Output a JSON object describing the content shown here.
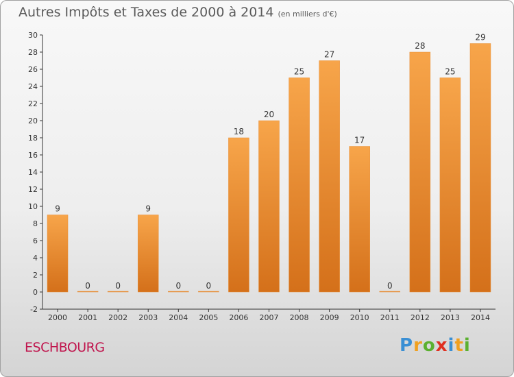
{
  "title": "Autres Impôts et Taxes de 2000 à 2014",
  "subtitle": "(en milliers d'€)",
  "city": "ESCHBOURG",
  "logo": {
    "letters": [
      "P",
      "r",
      "o",
      "x",
      "i",
      "t",
      "i"
    ],
    "colors": [
      "#3a8fd4",
      "#f0a020",
      "#5bb030",
      "#e03020",
      "#3a8fd4",
      "#f0a020",
      "#5bb030"
    ]
  },
  "colors": {
    "bar_top": "#f7a54a",
    "bar_bottom": "#d4701a",
    "axis": "#333333",
    "grid": "#cfcfcf",
    "label": "#333333",
    "title": "#5a5a5a",
    "city": "#c0164e"
  },
  "chart_data": {
    "type": "bar",
    "categories": [
      "2000",
      "2001",
      "2002",
      "2003",
      "2004",
      "2005",
      "2006",
      "2007",
      "2008",
      "2009",
      "2010",
      "2011",
      "2012",
      "2013",
      "2014"
    ],
    "values": [
      9,
      0,
      0,
      9,
      0,
      0,
      18,
      20,
      25,
      27,
      17,
      0,
      28,
      25,
      29
    ],
    "ylim": [
      -2,
      30
    ],
    "yticks": [
      -2,
      0,
      2,
      4,
      6,
      8,
      10,
      12,
      14,
      16,
      18,
      20,
      22,
      24,
      26,
      28,
      30
    ],
    "grid": false,
    "legend": "none"
  }
}
